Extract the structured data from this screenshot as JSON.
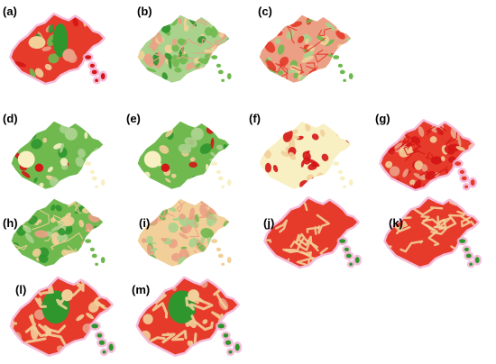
{
  "figure": {
    "colors": {
      "dark_red": "#d41616",
      "red": "#e63a2a",
      "salmon": "#eba085",
      "tan": "#f2cf99",
      "cream": "#f8f0c3",
      "light_green": "#a9d28d",
      "mid_green": "#6fb94f",
      "dark_green": "#2f962d",
      "pink_halo": "#f3b2d4"
    },
    "panels": [
      {
        "id": "a",
        "label": "(a)",
        "style": "red-green-classes"
      },
      {
        "id": "b",
        "label": "(b)",
        "style": "green-tan-texture"
      },
      {
        "id": "c",
        "label": "(c)",
        "style": "salmon-texture"
      },
      {
        "id": "d",
        "label": "(d)",
        "style": "green-cream-landcover"
      },
      {
        "id": "e",
        "label": "(e)",
        "style": "green-cream-landcover"
      },
      {
        "id": "f",
        "label": "(f)",
        "style": "cream-sparse-red"
      },
      {
        "id": "g",
        "label": "(g)",
        "style": "red-dense"
      },
      {
        "id": "h",
        "label": "(h)",
        "style": "green-tan-mix"
      },
      {
        "id": "i",
        "label": "(i)",
        "style": "tan-green-texture"
      },
      {
        "id": "j",
        "label": "(j)",
        "style": "red-network"
      },
      {
        "id": "k",
        "label": "(k)",
        "style": "red-network"
      },
      {
        "id": "l",
        "label": "(l)",
        "style": "red-green-smooth"
      },
      {
        "id": "m",
        "label": "(m)",
        "style": "red-green-smooth"
      }
    ]
  }
}
